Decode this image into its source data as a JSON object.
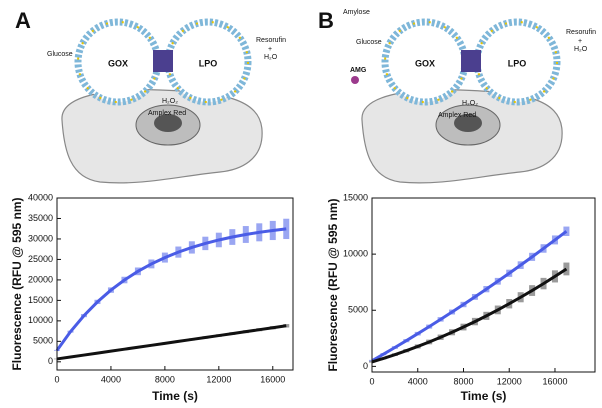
{
  "diagrams": [
    {
      "panel": "A",
      "enzyme1": "GOX",
      "enzyme2": "LPO",
      "substrate": "Glucose",
      "product": "Resorufin",
      "plus": "+",
      "water": "H₂O",
      "peroxide": "H₂O₂",
      "dye": "Amplex Red"
    },
    {
      "panel": "B",
      "polymer": "Amylose",
      "substrate": "Glucose",
      "amg": "AMG",
      "enzyme1": "GOX",
      "enzyme2": "LPO",
      "product": "Resorufin",
      "plus": "+",
      "water": "H₂O",
      "peroxide": "H₂O₂",
      "dye": "Amplex Red"
    }
  ],
  "chart_data": [
    {
      "type": "line",
      "xlabel": "Time (s)",
      "ylabel": "Fluorescence (RFU @ 595 nm)",
      "x": [
        0,
        1000,
        2000,
        3000,
        4000,
        5000,
        6000,
        7000,
        8000,
        9000,
        10000,
        11000,
        12000,
        13000,
        14000,
        15000,
        16000,
        17000
      ],
      "series": [
        {
          "color": "#4a5ce6",
          "band_color": "#9aa6f2",
          "values": [
            2800,
            7360,
            11280,
            14630,
            17510,
            19970,
            22090,
            23900,
            25450,
            26790,
            27930,
            28910,
            29750,
            30470,
            31090,
            31620,
            32070,
            32460
          ],
          "error": [
            100,
            240,
            380,
            520,
            660,
            800,
            940,
            1080,
            1220,
            1360,
            1500,
            1640,
            1780,
            1920,
            2060,
            2200,
            2340,
            2480
          ]
        },
        {
          "color": "#111111",
          "band_color": "#9a9a9a",
          "values": [
            700,
            1180,
            1650,
            2130,
            2600,
            3080,
            3560,
            4030,
            4510,
            4980,
            5460,
            5940,
            6410,
            6890,
            7360,
            7840,
            8320,
            8800
          ],
          "error": [
            80,
            100,
            120,
            140,
            160,
            180,
            200,
            220,
            240,
            260,
            280,
            300,
            320,
            340,
            360,
            380,
            400,
            420
          ]
        }
      ],
      "xlim": [
        0,
        17500
      ],
      "xticks": [
        0,
        4000,
        8000,
        12000,
        16000
      ],
      "ylim": [
        -2000,
        40000
      ],
      "yticks": [
        0,
        5000,
        10000,
        15000,
        20000,
        25000,
        30000,
        35000,
        40000
      ]
    },
    {
      "type": "line",
      "xlabel": "Time (s)",
      "ylabel": "Fluorescence (RFU @ 595 nm)",
      "x": [
        0,
        1000,
        2000,
        3000,
        4000,
        5000,
        6000,
        7000,
        8000,
        9000,
        10000,
        11000,
        12000,
        13000,
        14000,
        15000,
        16000,
        17000
      ],
      "series": [
        {
          "color": "#4a5ce6",
          "band_color": "#9aa6f2",
          "values": [
            500,
            1086,
            1683,
            2292,
            2913,
            3545,
            4189,
            4844,
            5511,
            6190,
            6880,
            7582,
            8295,
            9020,
            9757,
            10505,
            11265,
            12036
          ],
          "error": [
            80,
            100,
            120,
            140,
            160,
            180,
            200,
            220,
            240,
            260,
            280,
            300,
            320,
            340,
            360,
            380,
            400,
            420
          ]
        },
        {
          "color": "#111111",
          "band_color": "#9a9a9a",
          "values": [
            400,
            711,
            1044,
            1399,
            1776,
            2175,
            2596,
            3039,
            3504,
            3991,
            4500,
            5031,
            5584,
            6159,
            6756,
            7375,
            8016,
            8679
          ],
          "error": [
            60,
            90,
            120,
            150,
            180,
            210,
            240,
            270,
            300,
            330,
            360,
            390,
            420,
            450,
            480,
            510,
            540,
            570
          ]
        }
      ],
      "xlim": [
        0,
        19500
      ],
      "xticks": [
        0,
        4000,
        8000,
        12000,
        16000
      ],
      "ylim": [
        -500,
        15000
      ],
      "yticks": [
        0,
        5000,
        10000,
        15000
      ]
    }
  ]
}
